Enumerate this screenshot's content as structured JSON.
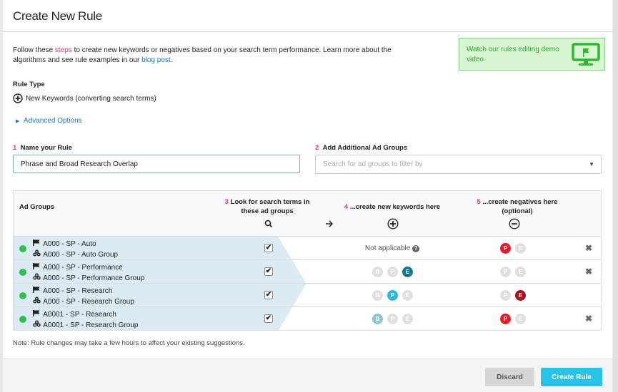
{
  "title": "Create New Rule",
  "intro": {
    "p1": "Follow these ",
    "steps_link": "steps",
    "p2": " to create new keywords or negatives based on your search term performance. Learn more about the algorithms and see rule examples in our ",
    "blog_link": "blog post",
    "p3": "."
  },
  "demo": {
    "label": "Watch our rules editing demo video",
    "icon": "monitor-flag-icon"
  },
  "rule_type": {
    "label": "Rule Type",
    "value": "New Keywords (converting search terms)"
  },
  "advanced_options": "Advanced Options",
  "name_field": {
    "step": "1",
    "label": "Name your Rule",
    "value": "Phrase and Broad Research Overlap"
  },
  "ad_groups_field": {
    "step": "2",
    "label": "Add Additional Ad Groups",
    "placeholder": "Search for ad groups to filter by"
  },
  "table": {
    "headers": {
      "ad_groups": "Ad Groups",
      "look_step": "3",
      "look": "Look for search terms in these ad groups",
      "kw_step": "4",
      "kw": "...create new keywords here",
      "neg_step": "5",
      "neg": "...create negatives here (optional)"
    },
    "not_applicable": "Not applicable",
    "rows": [
      {
        "campaign": "A000 - SP - Auto",
        "group": "A000 - SP - Auto Group",
        "checked": true,
        "keywords": null,
        "negatives": [
          {
            "l": "P",
            "c": "#e8192c"
          },
          {
            "l": "E",
            "c": "#e0e0e0"
          }
        ],
        "removable": true
      },
      {
        "campaign": "A000 - SP - Performance",
        "group": "A000 - SP - Performance Group",
        "checked": true,
        "keywords": [
          {
            "l": "B",
            "c": "#e0e0e0"
          },
          {
            "l": "P",
            "c": "#e0e0e0"
          },
          {
            "l": "E",
            "c": "#137a8c"
          }
        ],
        "negatives": [
          {
            "l": "P",
            "c": "#e0e0e0"
          },
          {
            "l": "E",
            "c": "#e0e0e0"
          }
        ],
        "removable": true
      },
      {
        "campaign": "A000 - SP - Research",
        "group": "A000 - SP - Research Group",
        "checked": true,
        "keywords": [
          {
            "l": "B",
            "c": "#e0e0e0"
          },
          {
            "l": "P",
            "c": "#29b9e0"
          },
          {
            "l": "E",
            "c": "#e0e0e0"
          }
        ],
        "negatives": [
          {
            "l": "P",
            "c": "#e0e0e0"
          },
          {
            "l": "E",
            "c": "#b00c1a"
          }
        ],
        "removable": false
      },
      {
        "campaign": "A0001 - SP - Research",
        "group": "A0001 - SP - Research Group",
        "checked": true,
        "keywords": [
          {
            "l": "B",
            "c": "#8cc7d0"
          },
          {
            "l": "P",
            "c": "#e0e0e0"
          },
          {
            "l": "E",
            "c": "#e0e0e0"
          }
        ],
        "negatives": [
          {
            "l": "P",
            "c": "#e8192c"
          },
          {
            "l": "E",
            "c": "#e0e0e0"
          }
        ],
        "removable": true
      }
    ]
  },
  "note": "Note: Rule changes may take a few hours to affect your existing suggestions.",
  "buttons": {
    "discard": "Discard",
    "create": "Create Rule"
  }
}
